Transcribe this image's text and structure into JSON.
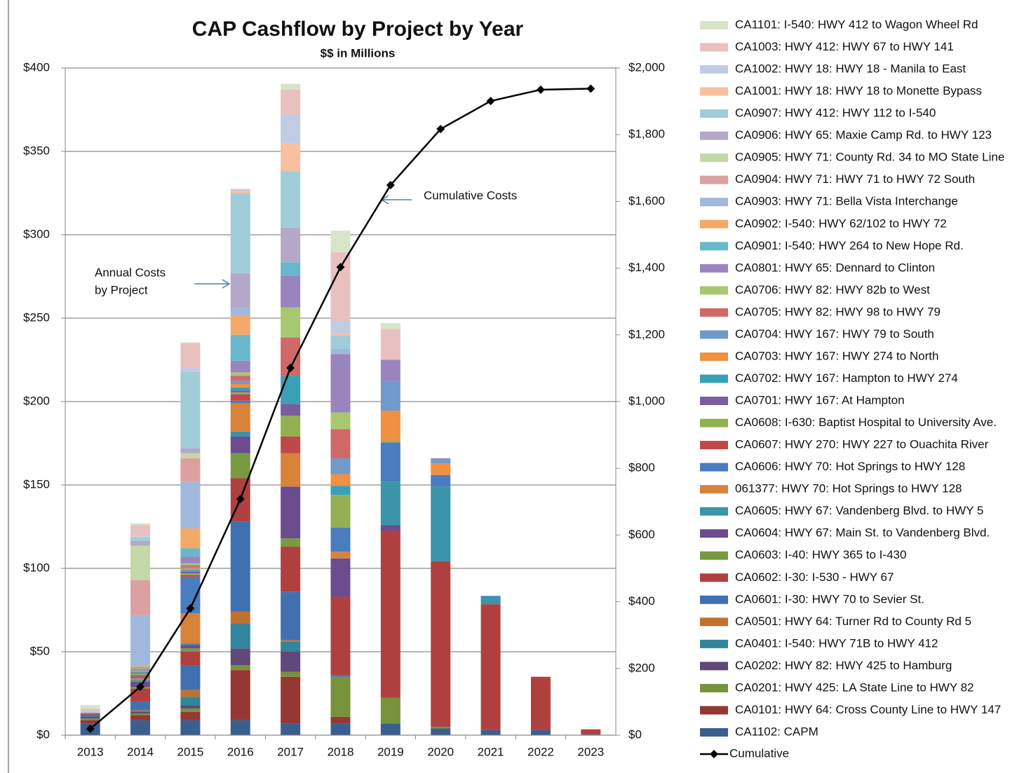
{
  "chart_data": {
    "type": "bar",
    "stacked": true,
    "title": "CAP Cashflow by Project by Year",
    "subtitle": "$$ in Millions",
    "categories": [
      "2013",
      "2014",
      "2015",
      "2016",
      "2017",
      "2018",
      "2019",
      "2020",
      "2021",
      "2022",
      "2023"
    ],
    "ylim": [
      0,
      400
    ],
    "yticks": [
      {
        "value": 0,
        "label": "$0"
      },
      {
        "value": 50,
        "label": "$50"
      },
      {
        "value": 100,
        "label": "$100"
      },
      {
        "value": 150,
        "label": "$150"
      },
      {
        "value": 200,
        "label": "$200"
      },
      {
        "value": 250,
        "label": "$250"
      },
      {
        "value": 300,
        "label": "$300"
      },
      {
        "value": 350,
        "label": "$350"
      },
      {
        "value": 400,
        "label": "$400"
      }
    ],
    "y2lim": [
      0,
      2000
    ],
    "y2ticks": [
      {
        "value": 0,
        "label": "$0"
      },
      {
        "value": 200,
        "label": "$200"
      },
      {
        "value": 400,
        "label": "$400"
      },
      {
        "value": 600,
        "label": "$600"
      },
      {
        "value": 800,
        "label": "$800"
      },
      {
        "value": 1000,
        "label": "$1,000"
      },
      {
        "value": 1200,
        "label": "$1,200"
      },
      {
        "value": 1400,
        "label": "$1,400"
      },
      {
        "value": 1600,
        "label": "$1,600"
      },
      {
        "value": 1800,
        "label": "$1,800"
      },
      {
        "value": 2000,
        "label": "$2,000"
      }
    ],
    "grid": true,
    "legend": "right",
    "annotations": [
      {
        "lines": [
          "Annual Costs",
          "by Project"
        ]
      },
      {
        "lines": [
          "Cumulative Costs"
        ]
      }
    ],
    "series": [
      {
        "name": "CA1102: CAPM",
        "color": "#3a5f8f",
        "values": [
          7,
          9,
          9,
          9,
          7,
          7,
          7,
          4,
          3,
          3,
          0.5
        ]
      },
      {
        "name": "CA0101: HWY 64: Cross County Line to HWY 147",
        "color": "#953735",
        "values": [
          2,
          3,
          5,
          30,
          28,
          4,
          0,
          0,
          0,
          0,
          0
        ]
      },
      {
        "name": "CA0201: HWY 425: LA State Line to HWY 82",
        "color": "#77933c",
        "values": [
          1,
          1,
          2,
          3,
          3,
          24,
          15.5,
          1,
          0,
          0,
          0
        ]
      },
      {
        "name": "CA0202: HWY 82: HWY 425 to Hamburg",
        "color": "#5f497a",
        "values": [
          1,
          1,
          2,
          10,
          12,
          0,
          0,
          0,
          0,
          0,
          0
        ]
      },
      {
        "name": "CA0401: I-540: HWY 71B to HWY 412",
        "color": "#31859c",
        "values": [
          0,
          0.5,
          5,
          15,
          6,
          0,
          0,
          0,
          0,
          0,
          0
        ]
      },
      {
        "name": "CA0501: HWY 64: Turner Rd to County Rd 5",
        "color": "#c2702e",
        "values": [
          0,
          0.5,
          4,
          7,
          1,
          0,
          0,
          0,
          0,
          0,
          0
        ]
      },
      {
        "name": "CA0601: I-30: HWY 70 to Sevier St.",
        "color": "#4170b0",
        "values": [
          1,
          5,
          15,
          54,
          29,
          1,
          0,
          0,
          0,
          0,
          0
        ]
      },
      {
        "name": "CA0602: I-30: I-530 - HWY 67",
        "color": "#b04040",
        "values": [
          0.5,
          8,
          8,
          26,
          27,
          47,
          100,
          99,
          75.5,
          32,
          3
        ]
      },
      {
        "name": "CA0603: I-40: HWY 365 to I-430",
        "color": "#7a9a40",
        "values": [
          0,
          1,
          2,
          15,
          5,
          0,
          0,
          0,
          0,
          0,
          0
        ]
      },
      {
        "name": "CA0604: HWY 67: Main St. to Vandenberg Blvd.",
        "color": "#6a4c8f",
        "values": [
          0.5,
          3,
          2,
          10,
          31,
          23,
          3.5,
          0,
          0,
          0,
          0
        ]
      },
      {
        "name": "CA0605: HWY 67: Vandenberg Blvd. to HWY 5",
        "color": "#3a95a8",
        "values": [
          0,
          1,
          1,
          3,
          0,
          0,
          26,
          45,
          4.5,
          0,
          0
        ]
      },
      {
        "name": "061377: HWY 70: Hot Springs to HWY 128",
        "color": "#d8823a",
        "values": [
          0,
          1,
          18,
          17,
          20,
          4,
          0,
          0,
          0,
          0,
          0
        ]
      },
      {
        "name": "CA0606: HWY 70: Hot Springs to HWY 128",
        "color": "#4a7cc0",
        "values": [
          0,
          1,
          22,
          1.5,
          0,
          14.5,
          23.5,
          7,
          0.5,
          0,
          0
        ]
      },
      {
        "name": "CA0607: HWY 270: HWY 227 to Ouachita River",
        "color": "#c04848",
        "values": [
          0,
          1,
          1,
          4,
          10,
          0,
          0,
          0,
          0,
          0,
          0
        ]
      },
      {
        "name": "CA0608: I-630: Baptist Hospital to University Ave.",
        "color": "#92b050",
        "values": [
          0,
          1,
          1,
          1,
          12.5,
          19.5,
          1,
          0,
          0,
          0,
          0
        ]
      },
      {
        "name": "CA0701: HWY 167: At Hampton",
        "color": "#7a5ca0",
        "values": [
          0,
          0.5,
          1,
          1,
          7,
          0,
          0,
          0,
          0,
          0,
          0
        ]
      },
      {
        "name": "CA0702: HWY 167: Hampton to HWY 274",
        "color": "#3aa0b8",
        "values": [
          0,
          0.5,
          1,
          2,
          17,
          5.5,
          0,
          0,
          0,
          0,
          0
        ]
      },
      {
        "name": "CA0703: HWY 167: HWY 274 to North",
        "color": "#f09040",
        "values": [
          0,
          0.5,
          1,
          2,
          0,
          7,
          18,
          7,
          0,
          0,
          0
        ]
      },
      {
        "name": "CA0704: HWY 167: HWY 79 to South",
        "color": "#7099cc",
        "values": [
          0,
          0.5,
          1,
          2,
          0,
          9.5,
          17.5,
          2,
          0,
          0,
          0
        ]
      },
      {
        "name": "CA0705: HWY 82: HWY 98 to HWY 79",
        "color": "#d06868",
        "values": [
          0,
          0.5,
          1,
          3,
          23,
          17.5,
          0,
          0,
          0,
          0,
          0
        ]
      },
      {
        "name": "CA0706: HWY 82: HWY 82b to West",
        "color": "#a8c870",
        "values": [
          0,
          0.5,
          1,
          2,
          18,
          10,
          0,
          0,
          0,
          0,
          0
        ]
      },
      {
        "name": "CA0801: HWY 65: Dennard to Clinton",
        "color": "#9a84be",
        "values": [
          0,
          0.5,
          4,
          7,
          19,
          35,
          13,
          1,
          0,
          0,
          0
        ]
      },
      {
        "name": "CA0901: I-540: HWY 264 to New Hope Rd.",
        "color": "#68b8cc",
        "values": [
          0,
          0.5,
          5,
          15.5,
          8,
          0,
          0,
          0,
          0,
          0,
          0
        ]
      },
      {
        "name": "CA0902: I-540: HWY 62/102 to HWY 72",
        "color": "#f4a868",
        "values": [
          0,
          1,
          12,
          11.5,
          0,
          0,
          0,
          0,
          0,
          0,
          0
        ]
      },
      {
        "name": "CA0903: HWY 71: Bella Vista Interchange",
        "color": "#a0b8dc",
        "values": [
          0.5,
          30,
          28,
          4.5,
          0,
          3,
          0,
          0,
          0,
          0,
          0
        ]
      },
      {
        "name": "CA0904: HWY 71: HWY 71 to HWY 72 South",
        "color": "#dca0a0",
        "values": [
          0.5,
          21,
          14,
          0,
          0,
          0,
          0,
          0,
          0,
          0,
          0
        ]
      },
      {
        "name": "CA0905: HWY 71: County Rd. 34 to MO State Line",
        "color": "#c4d8a8",
        "values": [
          0.5,
          20.5,
          3,
          0,
          0,
          0,
          0,
          0,
          0,
          0,
          0
        ]
      },
      {
        "name": "CA0906: HWY 65: Maxie Camp Rd. to HWY 123",
        "color": "#b4a8c8",
        "values": [
          0,
          3,
          3,
          21,
          20.5,
          0,
          0,
          0,
          0,
          0,
          0
        ]
      },
      {
        "name": "CA0907: HWY 412: HWY 112 to I-540",
        "color": "#a0ccd8",
        "values": [
          0,
          2,
          46,
          48,
          34,
          8,
          0,
          0,
          0,
          0,
          0
        ]
      },
      {
        "name": "CA1001: HWY 18: HWY 18 to Monette Bypass",
        "color": "#f8c0a0",
        "values": [
          0,
          0.5,
          0,
          1,
          17,
          1.5,
          0,
          0,
          0,
          0,
          0
        ]
      },
      {
        "name": "CA1002: HWY 18: HWY 18 - Manila to East",
        "color": "#c0cce4",
        "values": [
          1,
          1,
          2,
          0.5,
          17,
          7.5,
          0,
          0,
          0,
          0,
          0
        ]
      },
      {
        "name": "CA1003: HWY 412: HWY 67 to HWY 141",
        "color": "#e8c0c0",
        "values": [
          0.5,
          6,
          15,
          1,
          15,
          41,
          18.5,
          0,
          0,
          0,
          0
        ]
      },
      {
        "name": "CA1101: I-540: HWY 412 to Wagon Wheel Rd",
        "color": "#d8e4c8",
        "values": [
          2,
          1,
          0.5,
          0,
          3.5,
          13,
          3.5,
          0,
          0,
          0,
          0
        ]
      },
      {
        "name": "Cumulative",
        "type": "line",
        "axis": "y2",
        "color": "#000000",
        "values": [
          19,
          145,
          380,
          708,
          1101,
          1403,
          1649,
          1817,
          1901,
          1935,
          1938
        ]
      }
    ]
  }
}
